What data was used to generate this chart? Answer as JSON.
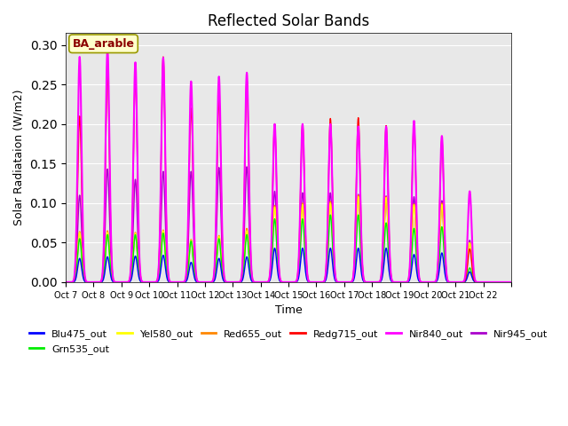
{
  "title": "Reflected Solar Bands",
  "xlabel": "Time",
  "ylabel": "Solar Radiataion (W/m2)",
  "annotation": "BA_arable",
  "ylim": [
    0.0,
    0.315
  ],
  "n_days": 16,
  "pts_per_day": 96,
  "background_color": "#e8e8e8",
  "xtick_labels": [
    "Oct 7",
    "Oct 8",
    "Oct 9",
    "Oct 10",
    "Oct 11",
    "Oct 12",
    "Oct 13",
    "Oct 14",
    "Oct 15",
    "Oct 16",
    "Oct 17",
    "Oct 18",
    "Oct 19",
    "Oct 20",
    "Oct 21",
    "Oct 22"
  ],
  "series_colors": {
    "Blu475_out": "#0000ff",
    "Grn535_out": "#00ee00",
    "Yel580_out": "#ffff00",
    "Red655_out": "#ff8800",
    "Redg715_out": "#ff0000",
    "Nir840_out": "#ff00ff",
    "Nir945_out": "#aa00cc"
  },
  "draw_order": [
    "Nir945_out",
    "Red655_out",
    "Yel580_out",
    "Grn535_out",
    "Blu475_out",
    "Redg715_out",
    "Nir840_out"
  ],
  "legend_order": [
    "Blu475_out",
    "Grn535_out",
    "Yel580_out",
    "Red655_out",
    "Redg715_out",
    "Nir840_out",
    "Nir945_out"
  ],
  "day_peaks": {
    "Blu475": [
      0.03,
      0.032,
      0.033,
      0.034,
      0.025,
      0.03,
      0.032,
      0.043,
      0.043,
      0.043,
      0.043,
      0.043,
      0.035,
      0.037,
      0.013,
      0.0
    ],
    "Grn535": [
      0.055,
      0.06,
      0.06,
      0.062,
      0.052,
      0.055,
      0.06,
      0.08,
      0.08,
      0.085,
      0.085,
      0.075,
      0.068,
      0.07,
      0.018,
      0.0
    ],
    "Yel580": [
      0.063,
      0.063,
      0.062,
      0.065,
      0.053,
      0.058,
      0.065,
      0.095,
      0.098,
      0.1,
      0.108,
      0.107,
      0.098,
      0.098,
      0.05,
      0.0
    ],
    "Red655": [
      0.064,
      0.065,
      0.063,
      0.066,
      0.054,
      0.059,
      0.068,
      0.097,
      0.1,
      0.102,
      0.11,
      0.108,
      0.099,
      0.1,
      0.05,
      0.0
    ],
    "Redg715": [
      0.21,
      0.265,
      0.258,
      0.285,
      0.22,
      0.232,
      0.256,
      0.2,
      0.2,
      0.207,
      0.208,
      0.198,
      0.202,
      0.18,
      0.042,
      0.0
    ],
    "Nir840": [
      0.285,
      0.295,
      0.278,
      0.284,
      0.254,
      0.26,
      0.265,
      0.2,
      0.2,
      0.2,
      0.197,
      0.197,
      0.204,
      0.185,
      0.115,
      0.0
    ],
    "Nir945": [
      0.11,
      0.143,
      0.13,
      0.14,
      0.14,
      0.145,
      0.146,
      0.115,
      0.113,
      0.113,
      0.111,
      0.109,
      0.108,
      0.103,
      0.053,
      0.0
    ]
  },
  "lw": {
    "Blu475_out": 1.0,
    "Grn535_out": 1.0,
    "Yel580_out": 1.0,
    "Red655_out": 1.0,
    "Redg715_out": 1.0,
    "Nir840_out": 1.5,
    "Nir945_out": 1.0
  }
}
